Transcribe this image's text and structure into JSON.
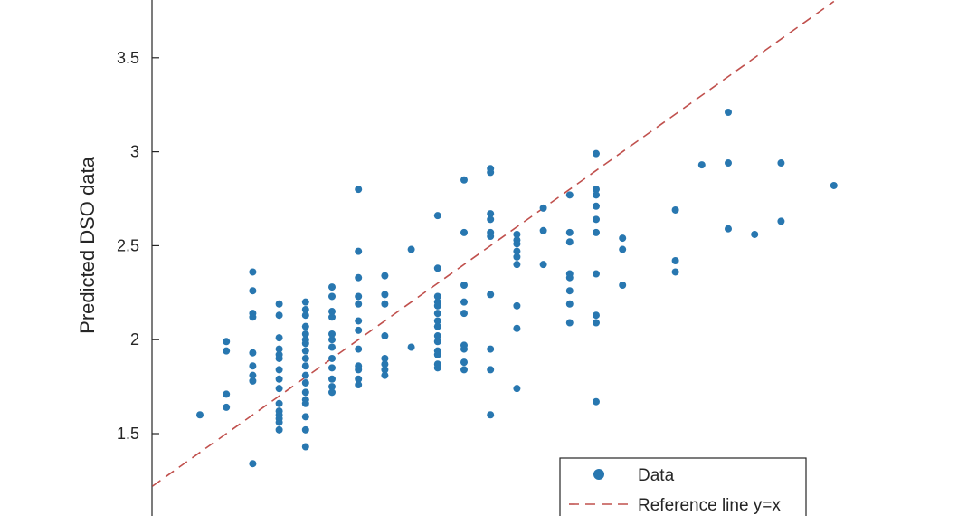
{
  "chart_data": {
    "type": "scatter",
    "title": "",
    "xlabel": "",
    "ylabel": "Predicted DSO data",
    "ylim": [
      1.2,
      3.8
    ],
    "xlim": [
      1.17,
      4.25
    ],
    "y_ticks": [
      "1.5",
      "2",
      "2.5",
      "3",
      "3.5"
    ],
    "grid": false,
    "legend": {
      "placement": "bottom-right",
      "entries": [
        "Data",
        "Reference line y=x"
      ]
    },
    "colors": {
      "data": "#2877b0",
      "reference": "#c0504d",
      "axis": "#262626"
    },
    "series": [
      {
        "name": "Data",
        "style": "markers",
        "points": [
          [
            1.4,
            1.6
          ],
          [
            1.5,
            1.99
          ],
          [
            1.5,
            1.94
          ],
          [
            1.5,
            1.71
          ],
          [
            1.5,
            1.64
          ],
          [
            1.6,
            2.36
          ],
          [
            1.6,
            2.26
          ],
          [
            1.6,
            2.14
          ],
          [
            1.6,
            2.12
          ],
          [
            1.6,
            1.93
          ],
          [
            1.6,
            1.86
          ],
          [
            1.6,
            1.81
          ],
          [
            1.6,
            1.78
          ],
          [
            1.6,
            1.34
          ],
          [
            1.7,
            2.19
          ],
          [
            1.7,
            2.13
          ],
          [
            1.7,
            2.01
          ],
          [
            1.7,
            1.95
          ],
          [
            1.7,
            1.92
          ],
          [
            1.7,
            1.9
          ],
          [
            1.7,
            1.84
          ],
          [
            1.7,
            1.79
          ],
          [
            1.7,
            1.74
          ],
          [
            1.7,
            1.66
          ],
          [
            1.7,
            1.62
          ],
          [
            1.7,
            1.6
          ],
          [
            1.7,
            1.58
          ],
          [
            1.7,
            1.56
          ],
          [
            1.7,
            1.52
          ],
          [
            1.8,
            2.2
          ],
          [
            1.8,
            2.16
          ],
          [
            1.8,
            2.13
          ],
          [
            1.8,
            2.07
          ],
          [
            1.8,
            2.03
          ],
          [
            1.8,
            2.0
          ],
          [
            1.8,
            1.98
          ],
          [
            1.8,
            1.94
          ],
          [
            1.8,
            1.9
          ],
          [
            1.8,
            1.86
          ],
          [
            1.8,
            1.81
          ],
          [
            1.8,
            1.77
          ],
          [
            1.8,
            1.72
          ],
          [
            1.8,
            1.68
          ],
          [
            1.8,
            1.66
          ],
          [
            1.8,
            1.59
          ],
          [
            1.8,
            1.52
          ],
          [
            1.8,
            1.43
          ],
          [
            1.9,
            2.28
          ],
          [
            1.9,
            2.23
          ],
          [
            1.9,
            2.15
          ],
          [
            1.9,
            2.12
          ],
          [
            1.9,
            2.03
          ],
          [
            1.9,
            2.0
          ],
          [
            1.9,
            1.96
          ],
          [
            1.9,
            1.9
          ],
          [
            1.9,
            1.85
          ],
          [
            1.9,
            1.79
          ],
          [
            1.9,
            1.75
          ],
          [
            1.9,
            1.72
          ],
          [
            2.0,
            2.8
          ],
          [
            2.0,
            2.47
          ],
          [
            2.0,
            2.33
          ],
          [
            2.0,
            2.23
          ],
          [
            2.0,
            2.19
          ],
          [
            2.0,
            2.1
          ],
          [
            2.0,
            2.05
          ],
          [
            2.0,
            1.95
          ],
          [
            2.0,
            1.86
          ],
          [
            2.0,
            1.84
          ],
          [
            2.0,
            1.79
          ],
          [
            2.0,
            1.76
          ],
          [
            2.1,
            2.34
          ],
          [
            2.1,
            2.24
          ],
          [
            2.1,
            2.19
          ],
          [
            2.1,
            2.02
          ],
          [
            2.1,
            1.9
          ],
          [
            2.1,
            1.87
          ],
          [
            2.1,
            1.84
          ],
          [
            2.1,
            1.81
          ],
          [
            2.2,
            2.48
          ],
          [
            2.2,
            1.96
          ],
          [
            2.3,
            2.66
          ],
          [
            2.3,
            2.38
          ],
          [
            2.3,
            2.23
          ],
          [
            2.3,
            2.2
          ],
          [
            2.3,
            2.18
          ],
          [
            2.3,
            2.14
          ],
          [
            2.3,
            2.1
          ],
          [
            2.3,
            2.07
          ],
          [
            2.3,
            2.02
          ],
          [
            2.3,
            1.99
          ],
          [
            2.3,
            1.94
          ],
          [
            2.3,
            1.92
          ],
          [
            2.3,
            1.87
          ],
          [
            2.3,
            1.85
          ],
          [
            2.4,
            2.85
          ],
          [
            2.4,
            2.57
          ],
          [
            2.4,
            2.29
          ],
          [
            2.4,
            2.2
          ],
          [
            2.4,
            2.14
          ],
          [
            2.4,
            1.97
          ],
          [
            2.4,
            1.95
          ],
          [
            2.4,
            1.88
          ],
          [
            2.4,
            1.84
          ],
          [
            2.5,
            2.91
          ],
          [
            2.5,
            2.89
          ],
          [
            2.5,
            2.67
          ],
          [
            2.5,
            2.64
          ],
          [
            2.5,
            2.57
          ],
          [
            2.5,
            2.55
          ],
          [
            2.5,
            2.24
          ],
          [
            2.5,
            1.95
          ],
          [
            2.5,
            1.84
          ],
          [
            2.5,
            1.6
          ],
          [
            2.6,
            2.56
          ],
          [
            2.6,
            2.53
          ],
          [
            2.6,
            2.51
          ],
          [
            2.6,
            2.47
          ],
          [
            2.6,
            2.44
          ],
          [
            2.6,
            2.4
          ],
          [
            2.6,
            2.18
          ],
          [
            2.6,
            2.06
          ],
          [
            2.6,
            1.74
          ],
          [
            2.7,
            2.7
          ],
          [
            2.7,
            2.58
          ],
          [
            2.7,
            2.4
          ],
          [
            2.8,
            2.77
          ],
          [
            2.8,
            2.57
          ],
          [
            2.8,
            2.52
          ],
          [
            2.8,
            2.35
          ],
          [
            2.8,
            2.33
          ],
          [
            2.8,
            2.26
          ],
          [
            2.8,
            2.19
          ],
          [
            2.8,
            2.09
          ],
          [
            2.9,
            2.99
          ],
          [
            2.9,
            2.8
          ],
          [
            2.9,
            2.77
          ],
          [
            2.9,
            2.71
          ],
          [
            2.9,
            2.64
          ],
          [
            2.9,
            2.57
          ],
          [
            2.9,
            2.35
          ],
          [
            2.9,
            2.13
          ],
          [
            2.9,
            2.09
          ],
          [
            2.9,
            1.67
          ],
          [
            3.0,
            2.54
          ],
          [
            3.0,
            2.48
          ],
          [
            3.0,
            2.29
          ],
          [
            3.2,
            2.69
          ],
          [
            3.2,
            2.42
          ],
          [
            3.2,
            2.36
          ],
          [
            3.3,
            2.93
          ],
          [
            3.4,
            3.21
          ],
          [
            3.4,
            2.94
          ],
          [
            3.4,
            2.59
          ],
          [
            3.5,
            2.56
          ],
          [
            3.6,
            2.94
          ],
          [
            3.6,
            2.63
          ],
          [
            3.8,
            2.82
          ]
        ]
      },
      {
        "name": "Reference line y=x",
        "style": "dashed-line",
        "points": [
          [
            1.22,
            1.22
          ],
          [
            3.8,
            3.8
          ]
        ]
      }
    ]
  }
}
